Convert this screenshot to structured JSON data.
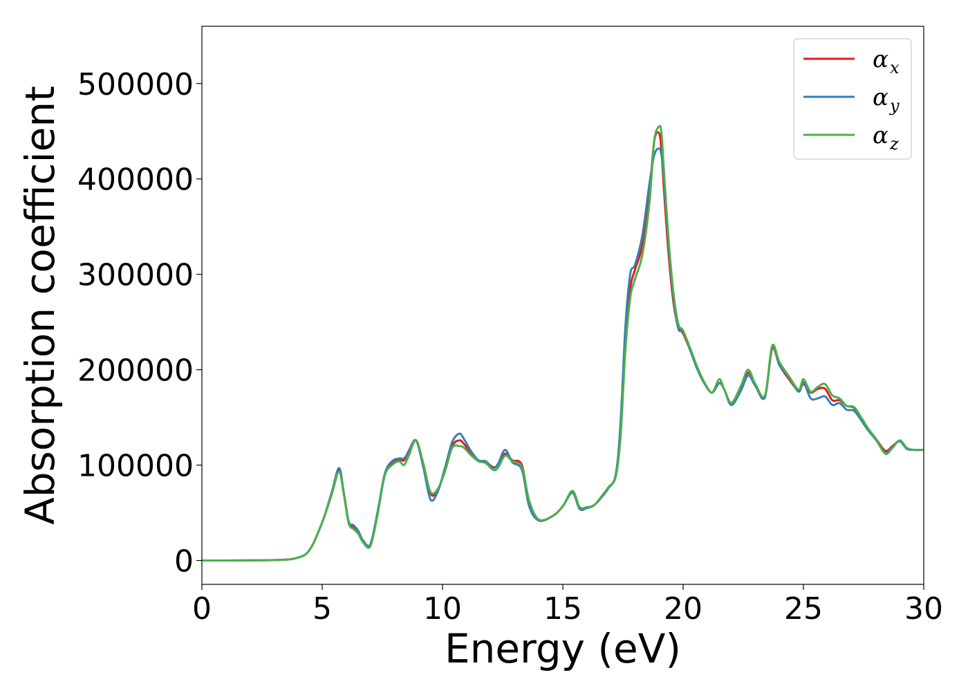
{
  "chart_data": {
    "type": "line",
    "xlabel": "Energy (eV)",
    "ylabel": "Absorption coefficient",
    "xlim": [
      0,
      30
    ],
    "ylim": [
      -25000,
      560000
    ],
    "xticks": [
      0,
      5,
      10,
      15,
      20,
      25,
      30
    ],
    "xtick_labels": [
      "0",
      "5",
      "10",
      "15",
      "20",
      "25",
      "30"
    ],
    "yticks": [
      0,
      100000,
      200000,
      300000,
      400000,
      500000
    ],
    "ytick_labels": [
      "0",
      "100000",
      "200000",
      "300000",
      "400000",
      "500000"
    ],
    "grid": false,
    "legend_position": "top-right",
    "series": [
      {
        "name": "α_x",
        "legend_main": "α",
        "legend_sub": "x",
        "color": "#e41a1c",
        "x": [
          0,
          3,
          4,
          4.5,
          5,
          5.4,
          5.7,
          5.9,
          6.1,
          6.3,
          6.5,
          6.7,
          7.0,
          7.3,
          7.6,
          7.9,
          8.2,
          8.4,
          8.6,
          8.9,
          9.2,
          9.5,
          9.8,
          10.1,
          10.4,
          10.7,
          10.9,
          11.2,
          11.5,
          11.8,
          12.1,
          12.3,
          12.6,
          12.9,
          13.3,
          13.6,
          14.0,
          14.6,
          15.0,
          15.4,
          15.7,
          16.0,
          16.3,
          16.6,
          16.9,
          17.2,
          17.4,
          17.6,
          17.8,
          18.0,
          18.3,
          18.6,
          18.8,
          19.0,
          19.1,
          19.2,
          19.4,
          19.6,
          19.8,
          20.0,
          20.3,
          20.6,
          20.9,
          21.2,
          21.5,
          21.7,
          22.0,
          22.4,
          22.7,
          23.0,
          23.4,
          23.7,
          24.0,
          24.4,
          24.8,
          25.0,
          25.3,
          25.6,
          25.9,
          26.2,
          26.5,
          26.8,
          27.1,
          27.4,
          27.7,
          28.0,
          28.4,
          28.7,
          29.0,
          29.3,
          29.6,
          30
        ],
        "y": [
          0,
          500,
          3000,
          12000,
          40000,
          70000,
          95000,
          70000,
          40000,
          35000,
          30000,
          20000,
          16000,
          50000,
          90000,
          102000,
          106000,
          105000,
          115000,
          126000,
          100000,
          70000,
          73000,
          95000,
          120000,
          126000,
          122000,
          112000,
          104000,
          103000,
          98000,
          100000,
          112000,
          105000,
          100000,
          60000,
          42000,
          47000,
          57000,
          72000,
          55000,
          55000,
          58000,
          66000,
          76000,
          90000,
          140000,
          230000,
          285000,
          305000,
          330000,
          385000,
          440000,
          448000,
          430000,
          390000,
          320000,
          270000,
          245000,
          238000,
          220000,
          200000,
          185000,
          176000,
          186000,
          180000,
          165000,
          180000,
          197000,
          185000,
          172000,
          222000,
          205000,
          190000,
          178000,
          185000,
          176000,
          180000,
          180000,
          168000,
          168000,
          162000,
          160000,
          148000,
          137000,
          128000,
          115000,
          120000,
          125000,
          117000,
          116000,
          116000
        ]
      },
      {
        "name": "α_y",
        "legend_main": "α",
        "legend_sub": "y",
        "color": "#377eb8",
        "x": [
          0,
          3,
          4,
          4.5,
          5,
          5.4,
          5.7,
          5.9,
          6.1,
          6.3,
          6.5,
          6.7,
          7.0,
          7.3,
          7.6,
          7.9,
          8.2,
          8.4,
          8.6,
          8.9,
          9.2,
          9.5,
          9.8,
          10.1,
          10.4,
          10.7,
          10.9,
          11.2,
          11.5,
          11.8,
          12.1,
          12.3,
          12.6,
          12.9,
          13.3,
          13.6,
          14.0,
          14.6,
          15.0,
          15.4,
          15.7,
          16.0,
          16.3,
          16.6,
          16.9,
          17.2,
          17.4,
          17.6,
          17.8,
          18.0,
          18.3,
          18.6,
          18.8,
          19.0,
          19.1,
          19.2,
          19.4,
          19.6,
          19.8,
          20.0,
          20.3,
          20.6,
          20.9,
          21.2,
          21.5,
          21.7,
          22.0,
          22.4,
          22.7,
          23.0,
          23.4,
          23.7,
          24.0,
          24.4,
          24.8,
          25.0,
          25.3,
          25.6,
          25.9,
          26.2,
          26.5,
          26.8,
          27.1,
          27.4,
          27.7,
          28.0,
          28.4,
          28.7,
          29.0,
          29.3,
          29.6,
          30
        ],
        "y": [
          0,
          500,
          3000,
          12000,
          40000,
          72000,
          97000,
          71000,
          41000,
          37000,
          31000,
          21000,
          17000,
          51000,
          91000,
          104000,
          107000,
          107000,
          114000,
          126000,
          98000,
          64000,
          72000,
          97000,
          124000,
          133000,
          127000,
          114000,
          105000,
          104000,
          97000,
          101000,
          116000,
          103000,
          95000,
          57000,
          42000,
          47000,
          57000,
          71000,
          54000,
          55000,
          58000,
          66000,
          76000,
          90000,
          145000,
          245000,
          300000,
          310000,
          340000,
          395000,
          425000,
          432000,
          425000,
          400000,
          330000,
          275000,
          243000,
          240000,
          220000,
          200000,
          185000,
          176000,
          186000,
          180000,
          163000,
          178000,
          194000,
          183000,
          171000,
          224000,
          205000,
          192000,
          177000,
          187000,
          170000,
          170000,
          172000,
          163000,
          165000,
          158000,
          157000,
          147000,
          136000,
          127000,
          113000,
          119000,
          125000,
          117000,
          116000,
          116000
        ]
      },
      {
        "name": "α_z",
        "legend_main": "α",
        "legend_sub": "z",
        "color": "#4daf4a",
        "x": [
          0,
          3,
          4,
          4.5,
          5,
          5.4,
          5.7,
          5.9,
          6.1,
          6.3,
          6.5,
          6.7,
          7.0,
          7.3,
          7.6,
          7.9,
          8.2,
          8.4,
          8.6,
          8.9,
          9.2,
          9.5,
          9.8,
          10.1,
          10.4,
          10.7,
          10.9,
          11.2,
          11.5,
          11.8,
          12.1,
          12.3,
          12.6,
          12.9,
          13.3,
          13.6,
          14.0,
          14.6,
          15.0,
          15.4,
          15.7,
          16.0,
          16.3,
          16.6,
          16.9,
          17.2,
          17.4,
          17.6,
          17.8,
          18.0,
          18.3,
          18.6,
          18.8,
          19.0,
          19.1,
          19.2,
          19.4,
          19.6,
          19.8,
          20.0,
          20.3,
          20.6,
          20.9,
          21.2,
          21.5,
          21.7,
          22.0,
          22.4,
          22.7,
          23.0,
          23.4,
          23.7,
          24.0,
          24.4,
          24.8,
          25.0,
          25.3,
          25.6,
          25.9,
          26.2,
          26.5,
          26.8,
          27.1,
          27.4,
          27.7,
          28.0,
          28.4,
          28.7,
          29.0,
          29.3,
          29.6,
          30
        ],
        "y": [
          0,
          500,
          3000,
          12000,
          40000,
          70000,
          93000,
          69000,
          39000,
          33000,
          28000,
          19000,
          15000,
          48000,
          89000,
          100000,
          104000,
          100000,
          110000,
          126000,
          102000,
          72000,
          75000,
          93000,
          118000,
          120000,
          118000,
          110000,
          104000,
          102000,
          95000,
          97000,
          110000,
          104000,
          98000,
          63000,
          43000,
          47000,
          57000,
          73000,
          56000,
          56000,
          58000,
          67000,
          77000,
          88000,
          130000,
          220000,
          275000,
          295000,
          320000,
          375000,
          440000,
          455000,
          448000,
          410000,
          335000,
          280000,
          248000,
          241000,
          222000,
          202000,
          186000,
          176000,
          190000,
          180000,
          165000,
          183000,
          200000,
          185000,
          173000,
          225000,
          208000,
          193000,
          179000,
          190000,
          177000,
          182000,
          185000,
          173000,
          170000,
          162000,
          161000,
          150000,
          138000,
          128000,
          112000,
          118000,
          126000,
          118000,
          116000,
          116000
        ]
      }
    ]
  }
}
